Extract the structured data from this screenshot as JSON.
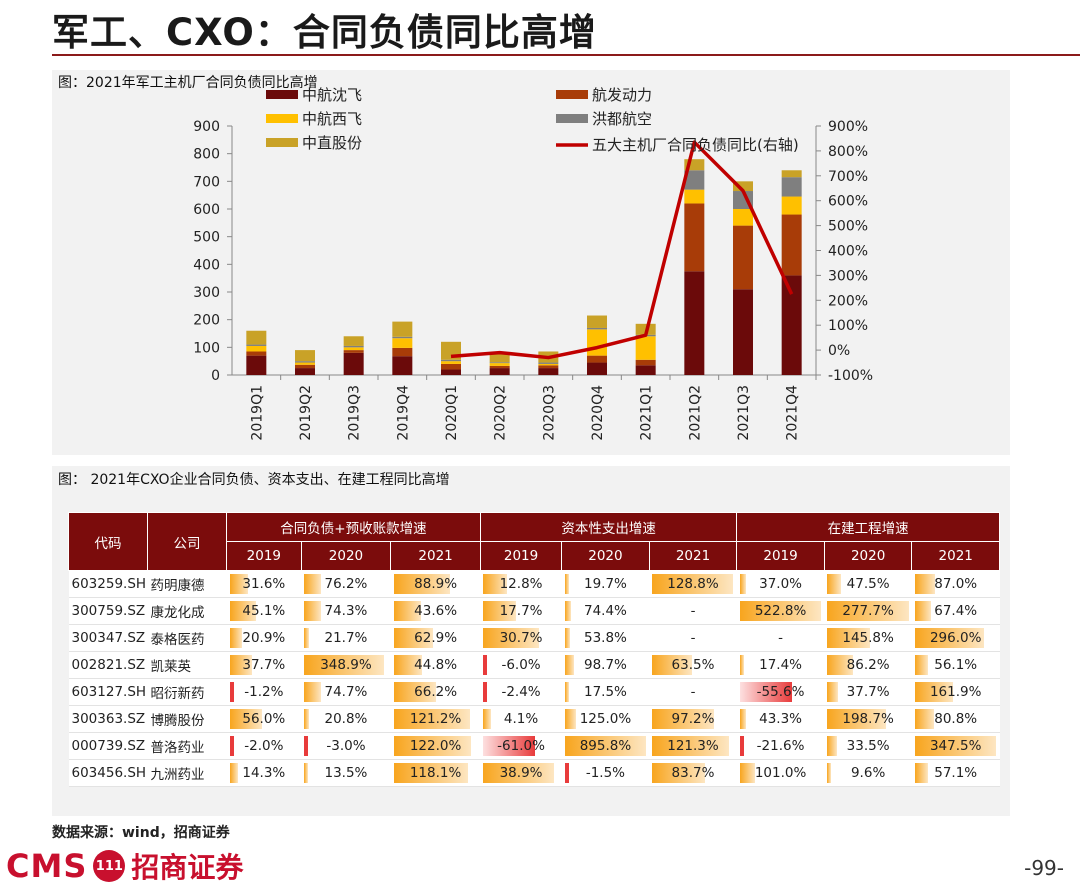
{
  "page": {
    "title": "军工、CXO：合同负债同比高增",
    "source": "数据来源：wind，招商证券",
    "page_number": "-99-",
    "logo": {
      "brand": "CMS",
      "mark": "111",
      "name": "招商证券"
    }
  },
  "chart_caption": "图：2021年军工主机厂合同负债同比高增",
  "chart_data": {
    "type": "bar",
    "stacked": true,
    "categories": [
      "2019Q1",
      "2019Q2",
      "2019Q3",
      "2019Q4",
      "2020Q1",
      "2020Q2",
      "2020Q3",
      "2020Q4",
      "2021Q1",
      "2021Q2",
      "2021Q3",
      "2021Q4"
    ],
    "series": [
      {
        "name": "中航沈飞",
        "color": "#6b0a0a",
        "values": [
          70,
          25,
          80,
          68,
          20,
          25,
          25,
          45,
          35,
          375,
          310,
          360
        ]
      },
      {
        "name": "航发动力",
        "color": "#a83c08",
        "values": [
          15,
          12,
          10,
          30,
          20,
          8,
          10,
          25,
          20,
          245,
          230,
          220
        ]
      },
      {
        "name": "中航西飞",
        "color": "#ffc000",
        "values": [
          20,
          8,
          10,
          35,
          10,
          10,
          5,
          95,
          85,
          50,
          60,
          65
        ]
      },
      {
        "name": "洪都航空",
        "color": "#7f7f7f",
        "values": [
          5,
          5,
          5,
          5,
          5,
          3,
          5,
          5,
          5,
          70,
          65,
          70
        ]
      },
      {
        "name": "中直股份",
        "color": "#c9a227",
        "values": [
          50,
          40,
          35,
          55,
          65,
          30,
          40,
          45,
          40,
          40,
          35,
          25
        ]
      },
      {
        "name": "五大主机厂合同负债同比(右轴)",
        "color": "#c00000",
        "axis": "right",
        "type": "line",
        "x": [
          "2020Q1",
          "2020Q2",
          "2020Q3",
          "2020Q4",
          "2021Q1",
          "2021Q2",
          "2021Q3",
          "2021Q4"
        ],
        "values": [
          -25,
          -10,
          -30,
          10,
          60,
          835,
          640,
          225
        ]
      }
    ],
    "ylim": [
      0,
      900
    ],
    "yticks": [
      "900",
      "800",
      "700",
      "600",
      "500",
      "400",
      "300",
      "200",
      "100",
      "0"
    ],
    "y2lim": [
      -100,
      900
    ],
    "y2ticks": [
      "900%",
      "800%",
      "700%",
      "600%",
      "500%",
      "400%",
      "300%",
      "200%",
      "100%",
      "0%",
      "-100%"
    ],
    "legend": "top"
  },
  "table_caption": "图：  2021年CXO企业合同负债、资本支出、在建工程同比高增",
  "table": {
    "header_code": "代码",
    "header_company": "公司",
    "groups": [
      "合同负债+预收账款增速",
      "资本性支出增速",
      "在建工程增速"
    ],
    "years": [
      "2019",
      "2020",
      "2021",
      "2019",
      "2020",
      "2021",
      "2019",
      "2020",
      "2021"
    ],
    "rows": [
      {
        "code": "603259.SH",
        "company": "药明康德",
        "cells": [
          "31.6%",
          "76.2%",
          "88.9%",
          "12.8%",
          "19.7%",
          "128.8%",
          "37.0%",
          "47.5%",
          "87.0%"
        ]
      },
      {
        "code": "300759.SZ",
        "company": "康龙化成",
        "cells": [
          "45.1%",
          "74.3%",
          "43.6%",
          "17.7%",
          "74.4%",
          "-",
          "522.8%",
          "277.7%",
          "67.4%"
        ]
      },
      {
        "code": "300347.SZ",
        "company": "泰格医药",
        "cells": [
          "20.9%",
          "21.7%",
          "62.9%",
          "30.7%",
          "53.8%",
          "-",
          "-",
          "145.8%",
          "296.0%"
        ]
      },
      {
        "code": "002821.SZ",
        "company": "凯莱英",
        "cells": [
          "37.7%",
          "348.9%",
          "44.8%",
          "-6.0%",
          "98.7%",
          "63.5%",
          "17.4%",
          "86.2%",
          "56.1%"
        ]
      },
      {
        "code": "603127.SH",
        "company": "昭衍新药",
        "cells": [
          "-1.2%",
          "74.7%",
          "66.2%",
          "-2.4%",
          "17.5%",
          "-",
          "-55.6%",
          "37.7%",
          "161.9%"
        ]
      },
      {
        "code": "300363.SZ",
        "company": "博腾股份",
        "cells": [
          "56.0%",
          "20.8%",
          "121.2%",
          "4.1%",
          "125.0%",
          "97.2%",
          "43.3%",
          "198.7%",
          "80.8%"
        ]
      },
      {
        "code": "000739.SZ",
        "company": "普洛药业",
        "cells": [
          "-2.0%",
          "-3.0%",
          "122.0%",
          "-61.0%",
          "895.8%",
          "121.3%",
          "-21.6%",
          "33.5%",
          "347.5%"
        ]
      },
      {
        "code": "603456.SH",
        "company": "九洲药业",
        "cells": [
          "14.3%",
          "13.5%",
          "118.1%",
          "38.9%",
          "-1.5%",
          "83.7%",
          "101.0%",
          "9.6%",
          "57.1%"
        ]
      }
    ]
  },
  "colors": {
    "accent": "#8b1a1a",
    "header_bg": "#7b0c0c",
    "bar_fill": "#f8a51e",
    "neg_fill": "#e83b3b"
  }
}
